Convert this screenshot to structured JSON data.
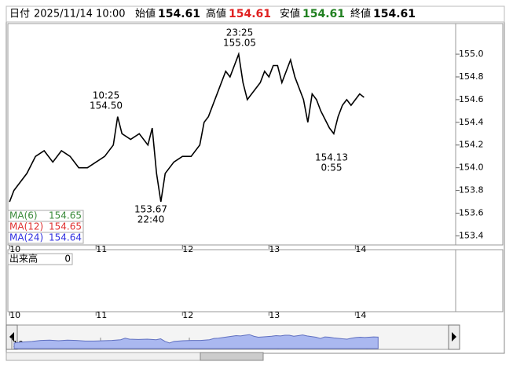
{
  "header": {
    "items": [
      {
        "label": "日付",
        "value": "2025/11/14 10:00"
      },
      {
        "label": "始値",
        "value": 154.61
      },
      {
        "label": "高値",
        "value": 154.61
      },
      {
        "label": "安値",
        "value": 154.61
      },
      {
        "label": "終値",
        "value": 154.61
      }
    ]
  },
  "chart_data": {
    "type": "line",
    "color": "#000000",
    "x": [
      10.0,
      10.05,
      10.1,
      10.2,
      10.3,
      10.4,
      10.5,
      10.6,
      10.7,
      10.8,
      10.9,
      11.0,
      11.1,
      11.2,
      11.25,
      11.3,
      11.4,
      11.5,
      11.6,
      11.65,
      11.7,
      11.75,
      11.8,
      11.9,
      12.0,
      12.1,
      12.2,
      12.25,
      12.3,
      12.4,
      12.5,
      12.55,
      12.6,
      12.65,
      12.7,
      12.75,
      12.8,
      12.9,
      12.95,
      13.0,
      13.05,
      13.1,
      13.15,
      13.2,
      13.25,
      13.3,
      13.4,
      13.45,
      13.5,
      13.55,
      13.6,
      13.7,
      13.75,
      13.8,
      13.85,
      13.9,
      13.95,
      14.0,
      14.05,
      14.1
    ],
    "values": [
      153.7,
      153.8,
      153.85,
      153.95,
      154.1,
      154.15,
      154.05,
      154.15,
      154.1,
      154.0,
      154.0,
      154.05,
      154.1,
      154.2,
      154.45,
      154.3,
      154.25,
      154.3,
      154.2,
      154.35,
      153.95,
      153.7,
      153.95,
      154.05,
      154.1,
      154.1,
      154.2,
      154.4,
      154.45,
      154.65,
      154.85,
      154.8,
      154.9,
      155.0,
      154.75,
      154.6,
      154.65,
      154.75,
      154.85,
      154.8,
      154.9,
      154.9,
      154.75,
      154.85,
      154.95,
      154.8,
      154.6,
      154.4,
      154.65,
      154.6,
      154.5,
      154.35,
      154.3,
      154.45,
      154.55,
      154.6,
      154.55,
      154.6,
      154.65,
      154.62
    ],
    "xlim": [
      9.98,
      15.16
    ],
    "xticks": [
      10,
      11,
      12,
      13,
      14
    ],
    "ylim": [
      153.32,
      155.27
    ],
    "yticks": [
      153.4,
      153.6,
      153.8,
      {
        "value": 154.0,
        "label": "154.0"
      },
      154.2,
      154.4,
      154.6,
      154.8,
      {
        "value": 155.0,
        "label": "155.0"
      }
    ],
    "grid": false,
    "annotations": [
      {
        "time": "10:25",
        "price": "154.50"
      },
      {
        "time": "23:25",
        "price": "155.05"
      },
      {
        "time": "22:40",
        "price": "153.67"
      },
      {
        "time": "0:55",
        "price": "154.13"
      }
    ],
    "indicators": [
      {
        "name": "MA(6)",
        "value": 154.65,
        "color": "#3a8a3a"
      },
      {
        "name": "MA(12)",
        "value": 154.65,
        "color": "#e03030"
      },
      {
        "name": "MA(24)",
        "value": 154.64,
        "color": "#3030e0"
      }
    ],
    "volume": {
      "label": "出来高",
      "value": 0
    }
  }
}
